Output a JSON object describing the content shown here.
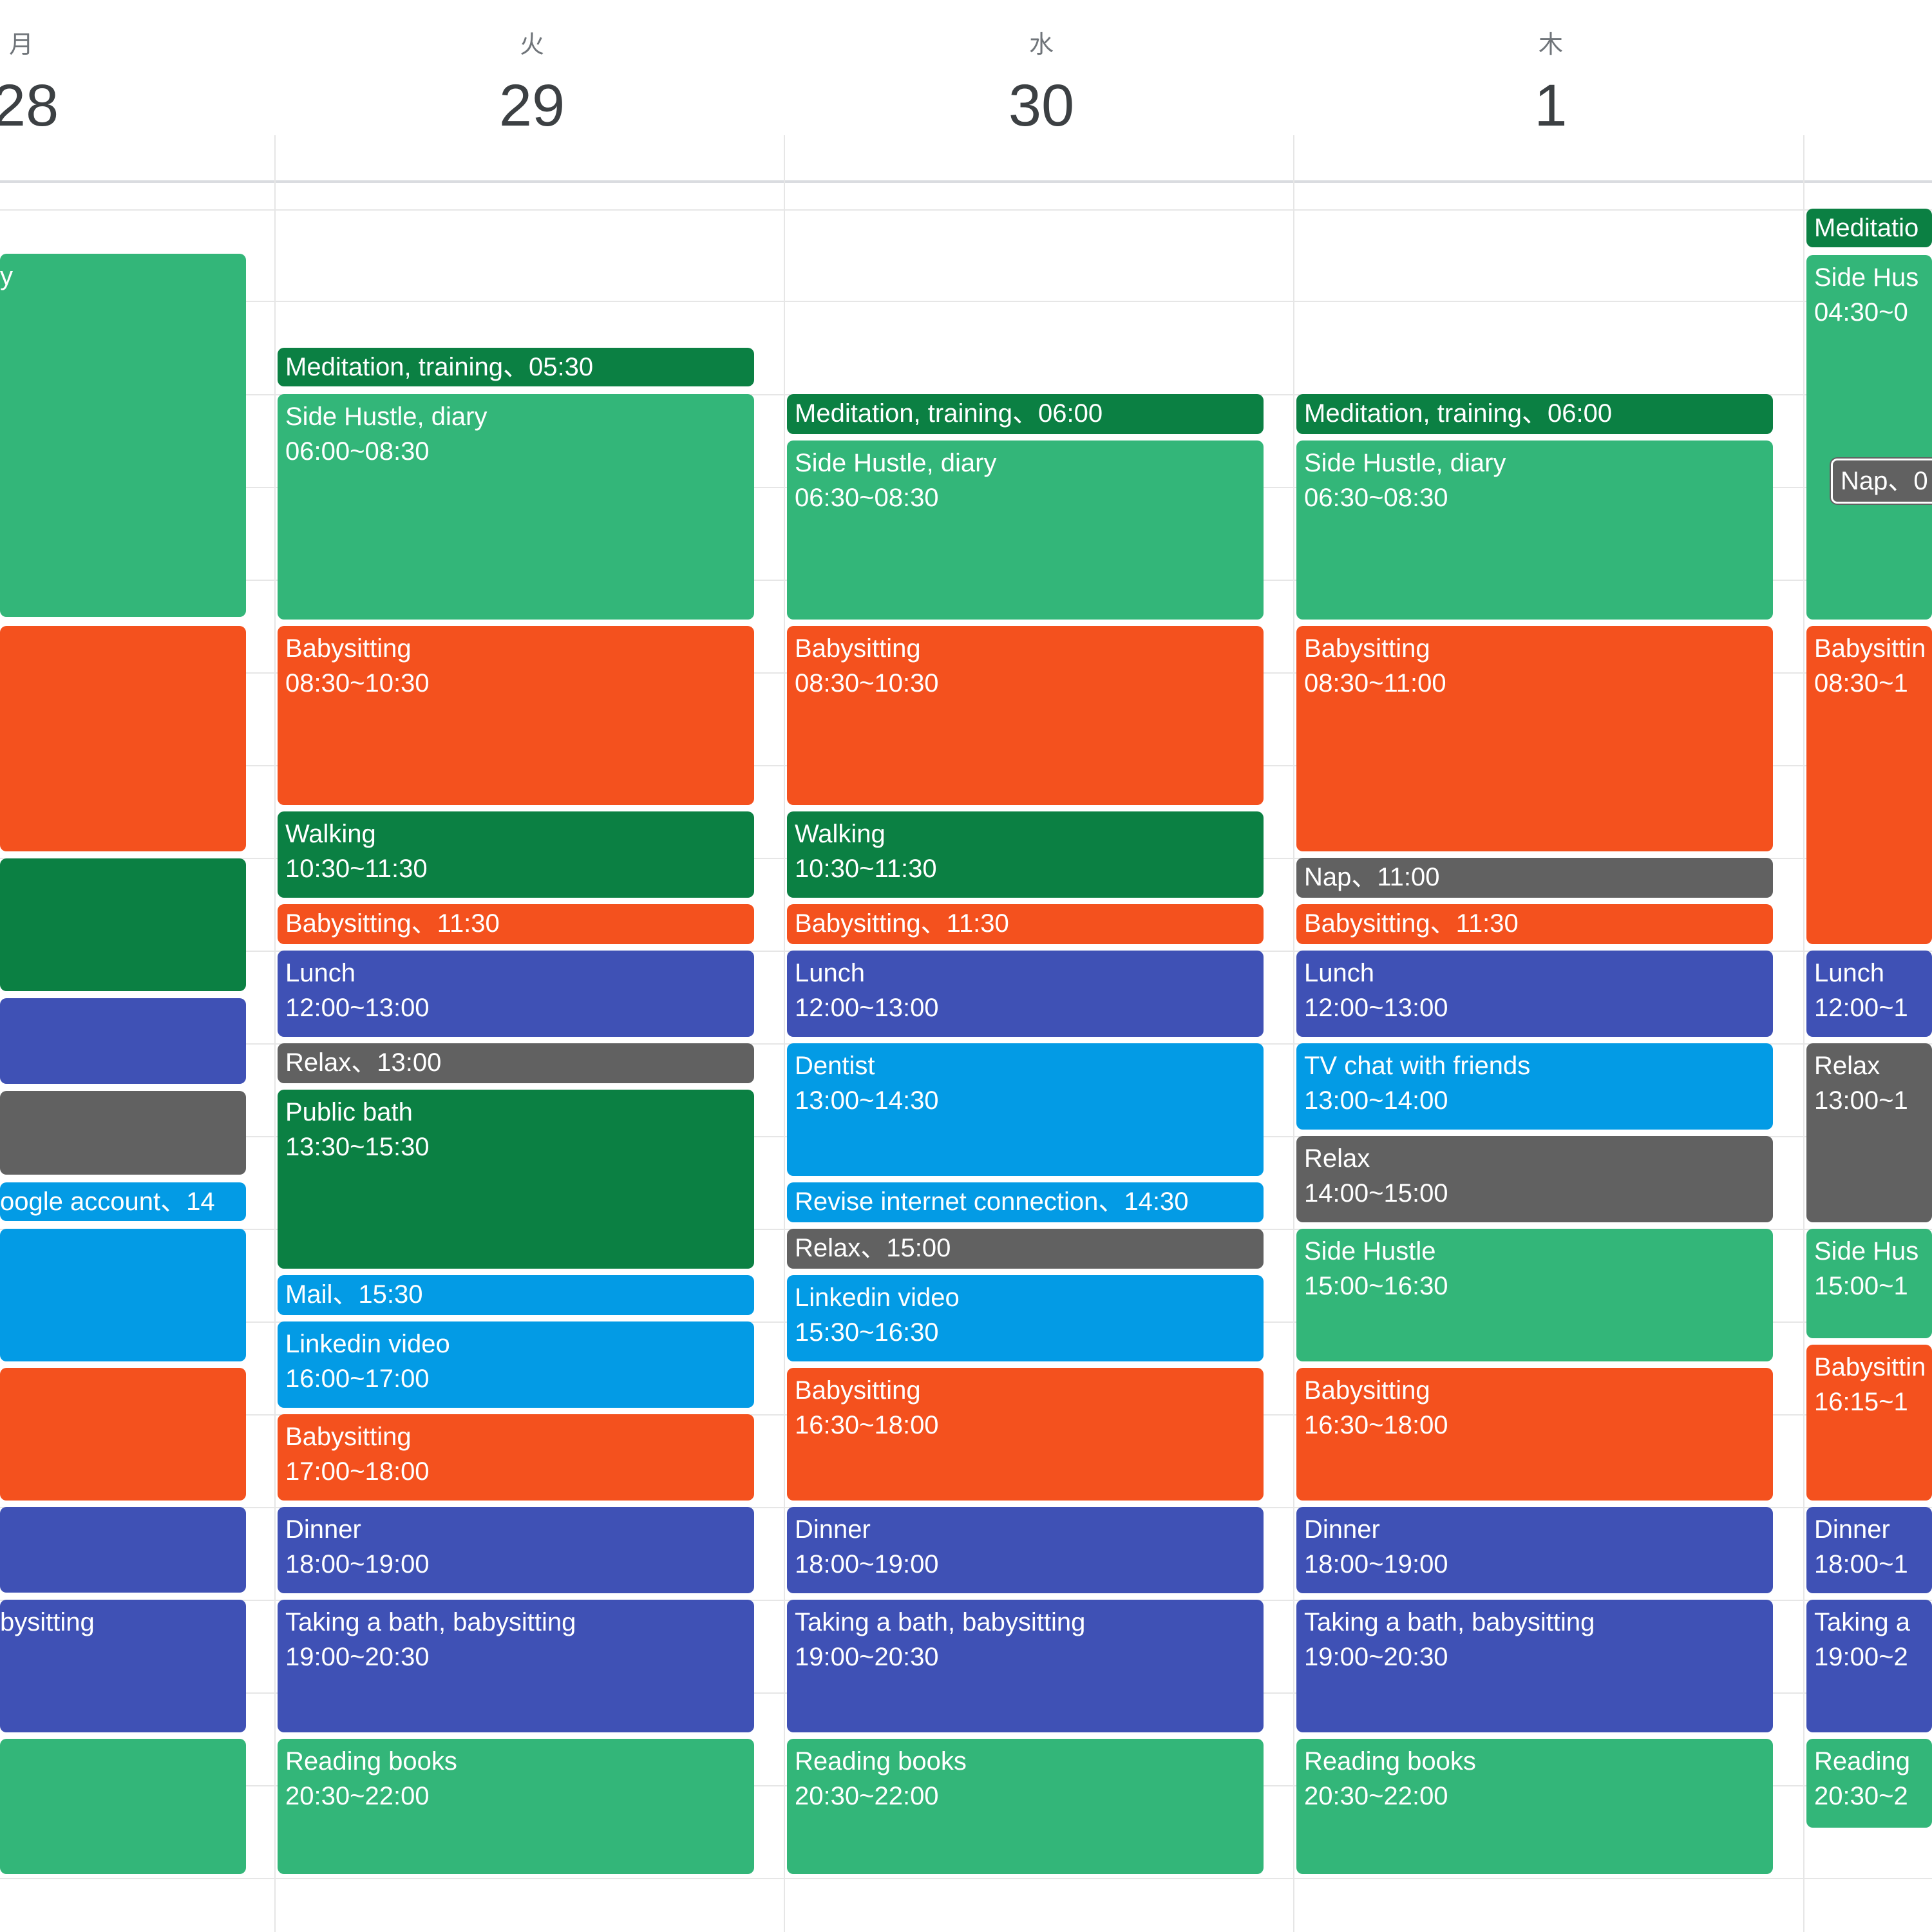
{
  "days": [
    {
      "dow": "月",
      "date": "28"
    },
    {
      "dow": "火",
      "date": "29"
    },
    {
      "dow": "水",
      "date": "30"
    },
    {
      "dow": "木",
      "date": "1"
    }
  ],
  "events": {
    "mon": [
      {
        "title": "y",
        "time": ""
      },
      {
        "title": "",
        "time": ""
      },
      {
        "title": "",
        "time": ""
      },
      {
        "title": "",
        "time": ""
      },
      {
        "title": "",
        "time": ""
      },
      {
        "title": "oogle account、14",
        "time": ""
      },
      {
        "title": "",
        "time": ""
      },
      {
        "title": "",
        "time": ""
      },
      {
        "title": "",
        "time": ""
      },
      {
        "title": "bysitting",
        "time": ""
      },
      {
        "title": "",
        "time": ""
      }
    ],
    "tue": [
      {
        "title": "Meditation, training、05:30"
      },
      {
        "title": "Side Hustle, diary",
        "time": "06:00~08:30"
      },
      {
        "title": "Babysitting",
        "time": "08:30~10:30"
      },
      {
        "title": "Walking",
        "time": "10:30~11:30"
      },
      {
        "title": "Babysitting、11:30"
      },
      {
        "title": "Lunch",
        "time": "12:00~13:00"
      },
      {
        "title": "Relax、13:00"
      },
      {
        "title": "Public bath",
        "time": "13:30~15:30"
      },
      {
        "title": "Mail、15:30"
      },
      {
        "title": "Linkedin video",
        "time": "16:00~17:00"
      },
      {
        "title": "Babysitting",
        "time": "17:00~18:00"
      },
      {
        "title": "Dinner",
        "time": "18:00~19:00"
      },
      {
        "title": "Taking a bath, babysitting",
        "time": "19:00~20:30"
      },
      {
        "title": "Reading books",
        "time": "20:30~22:00"
      }
    ],
    "wed": [
      {
        "title": "Meditation, training、06:00"
      },
      {
        "title": "Side Hustle, diary",
        "time": "06:30~08:30"
      },
      {
        "title": "Babysitting",
        "time": "08:30~10:30"
      },
      {
        "title": "Walking",
        "time": "10:30~11:30"
      },
      {
        "title": "Babysitting、11:30"
      },
      {
        "title": "Lunch",
        "time": "12:00~13:00"
      },
      {
        "title": "Dentist",
        "time": "13:00~14:30"
      },
      {
        "title": "Revise internet connection、14:30"
      },
      {
        "title": "Relax、15:00"
      },
      {
        "title": "Linkedin video",
        "time": "15:30~16:30"
      },
      {
        "title": "Babysitting",
        "time": "16:30~18:00"
      },
      {
        "title": "Dinner",
        "time": "18:00~19:00"
      },
      {
        "title": "Taking a bath, babysitting",
        "time": "19:00~20:30"
      },
      {
        "title": "Reading books",
        "time": "20:30~22:00"
      }
    ],
    "thu": [
      {
        "title": "Meditation, training、06:00"
      },
      {
        "title": "Side Hustle, diary",
        "time": "06:30~08:30"
      },
      {
        "title": "Babysitting",
        "time": "08:30~11:00"
      },
      {
        "title": "Nap、11:00"
      },
      {
        "title": "Babysitting、11:30"
      },
      {
        "title": "Lunch",
        "time": "12:00~13:00"
      },
      {
        "title": "TV chat with friends",
        "time": "13:00~14:00"
      },
      {
        "title": "Relax",
        "time": "14:00~15:00"
      },
      {
        "title": "Side Hustle",
        "time": "15:00~16:30"
      },
      {
        "title": "Babysitting",
        "time": "16:30~18:00"
      },
      {
        "title": "Dinner",
        "time": "18:00~19:00"
      },
      {
        "title": "Taking a bath, babysitting",
        "time": "19:00~20:30"
      },
      {
        "title": "Reading books",
        "time": "20:30~22:00"
      }
    ],
    "fri": [
      {
        "title": "Meditatio"
      },
      {
        "title": "Side Hus",
        "time": "04:30~0"
      },
      {
        "title": "Nap、0"
      },
      {
        "title": "Babysittin",
        "time": "08:30~1"
      },
      {
        "title": "Lunch",
        "time": "12:00~1"
      },
      {
        "title": "Relax",
        "time": "13:00~1"
      },
      {
        "title": "Side Hus",
        "time": "15:00~1"
      },
      {
        "title": "Babysittin",
        "time": "16:15~1"
      },
      {
        "title": "Dinner",
        "time": "18:00~1"
      },
      {
        "title": "Taking a",
        "time": "19:00~2"
      },
      {
        "title": "Reading",
        "time": "20:30~2"
      }
    ]
  },
  "colors": {
    "green": "#33b679",
    "dark_green": "#0b8043",
    "orange": "#f4511e",
    "indigo": "#3f51b5",
    "blue": "#039be5",
    "gray": "#616161"
  }
}
